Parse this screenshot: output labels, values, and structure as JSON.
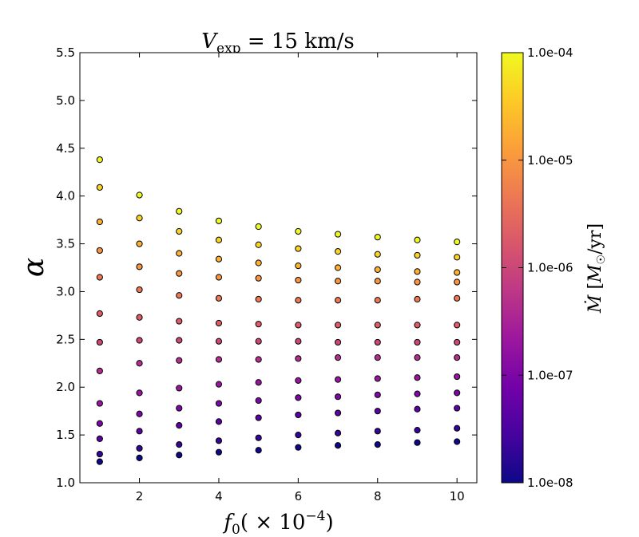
{
  "chart_data": {
    "type": "scatter",
    "title": "V_exp = 15 km/s",
    "title_parts": {
      "var": "V",
      "sub": "exp",
      "rest": " = 15 km/s"
    },
    "xlabel": "f₀( × 10⁻⁴)",
    "xlabel_parts": {
      "var": "f",
      "sub": "0",
      "pre": "( × 10",
      "sup": "−4",
      "post": ")"
    },
    "ylabel": "α",
    "xlim": [
      0.5,
      10.5
    ],
    "ylim": [
      1.0,
      5.5
    ],
    "xticks": [
      2,
      4,
      6,
      8,
      10
    ],
    "yticks": [
      1.0,
      1.5,
      2.0,
      2.5,
      3.0,
      3.5,
      4.0,
      4.5,
      5.0,
      5.5
    ],
    "grid": false,
    "colorbar": {
      "label": "Ṁ [M☉/yr]",
      "label_parts": {
        "var": "Ṁ",
        "open": " [",
        "m": "M",
        "sub": "☉",
        "close": "/yr]"
      },
      "scale": "log",
      "range": [
        1e-08,
        0.0001
      ],
      "colormap": "plasma",
      "ticks": [
        {
          "value": 1e-08,
          "label": "1.0e-08"
        },
        {
          "value": 1e-07,
          "label": "1.0e-07"
        },
        {
          "value": 1e-06,
          "label": "1.0e-06"
        },
        {
          "value": 1e-05,
          "label": "1.0e-05"
        },
        {
          "value": 0.0001,
          "label": "1.0e-04"
        }
      ]
    },
    "colormap_stops": [
      "#0d0887",
      "#46039f",
      "#7201a8",
      "#9c179e",
      "#bd3786",
      "#d8576b",
      "#ed7953",
      "#fb9f3a",
      "#fdca26",
      "#f0f921"
    ],
    "points": [
      {
        "x": 1,
        "y": [
          1.22,
          1.3,
          1.46,
          1.62,
          1.83,
          2.17,
          2.47,
          2.77,
          3.15,
          3.43,
          3.73,
          4.09,
          4.38
        ]
      },
      {
        "x": 2,
        "y": [
          1.26,
          1.36,
          1.54,
          1.72,
          1.94,
          2.25,
          2.49,
          2.73,
          3.02,
          3.26,
          3.5,
          3.77,
          4.01
        ]
      },
      {
        "x": 3,
        "y": [
          1.29,
          1.4,
          1.6,
          1.78,
          1.99,
          2.28,
          2.49,
          2.69,
          2.96,
          3.19,
          3.4,
          3.63,
          3.84
        ]
      },
      {
        "x": 4,
        "y": [
          1.32,
          1.44,
          1.64,
          1.83,
          2.03,
          2.29,
          2.48,
          2.67,
          2.93,
          3.15,
          3.34,
          3.54,
          3.74
        ]
      },
      {
        "x": 5,
        "y": [
          1.34,
          1.47,
          1.68,
          1.86,
          2.05,
          2.29,
          2.48,
          2.66,
          2.92,
          3.14,
          3.3,
          3.49,
          3.68
        ]
      },
      {
        "x": 6,
        "y": [
          1.37,
          1.5,
          1.71,
          1.89,
          2.07,
          2.3,
          2.48,
          2.65,
          2.91,
          3.12,
          3.27,
          3.45,
          3.63
        ]
      },
      {
        "x": 7,
        "y": [
          1.39,
          1.52,
          1.73,
          1.9,
          2.08,
          2.31,
          2.47,
          2.65,
          2.91,
          3.11,
          3.25,
          3.42,
          3.6
        ]
      },
      {
        "x": 8,
        "y": [
          1.4,
          1.54,
          1.75,
          1.92,
          2.09,
          2.31,
          2.47,
          2.65,
          2.91,
          3.11,
          3.23,
          3.39,
          3.57
        ]
      },
      {
        "x": 9,
        "y": [
          1.42,
          1.55,
          1.77,
          1.93,
          2.1,
          2.31,
          2.47,
          2.65,
          2.92,
          3.1,
          3.21,
          3.38,
          3.54
        ]
      },
      {
        "x": 10,
        "y": [
          1.43,
          1.57,
          1.78,
          1.94,
          2.11,
          2.31,
          2.47,
          2.65,
          2.93,
          3.1,
          3.2,
          3.36,
          3.52
        ]
      }
    ],
    "mdot_per_row": [
      1e-08,
      2e-08,
      4.5e-08,
      1e-07,
      2e-07,
      4.5e-07,
      1e-06,
      2e-06,
      4.5e-06,
      1e-05,
      2e-05,
      4.5e-05,
      0.0001
    ]
  }
}
